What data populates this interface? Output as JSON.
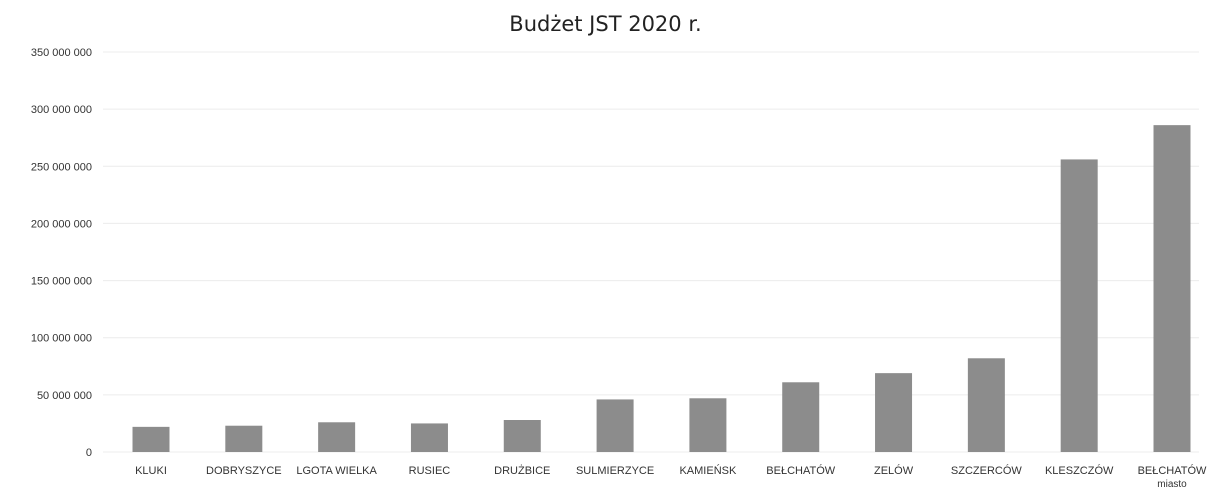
{
  "chart_data": {
    "type": "bar",
    "title": "Budżet JST 2020 r.",
    "xlabel": "",
    "ylabel": "",
    "ylim": [
      0,
      350000000
    ],
    "yticks": [
      0,
      50000000,
      100000000,
      150000000,
      200000000,
      250000000,
      300000000,
      350000000
    ],
    "ytick_labels": [
      "0",
      "50 000 000",
      "100 000 000",
      "150 000 000",
      "200 000 000",
      "250 000 000",
      "300 000 000",
      "350 000 000"
    ],
    "grid": true,
    "legend": false,
    "bar_color": "#8c8c8c",
    "categories": [
      {
        "label": "KLUKI",
        "sublabel": ""
      },
      {
        "label": "DOBRYSZYCE",
        "sublabel": ""
      },
      {
        "label": "LGOTA WIELKA",
        "sublabel": ""
      },
      {
        "label": "RUSIEC",
        "sublabel": ""
      },
      {
        "label": "DRUŻBICE",
        "sublabel": ""
      },
      {
        "label": "SULMIERZYCE",
        "sublabel": ""
      },
      {
        "label": "KAMIEŃSK",
        "sublabel": ""
      },
      {
        "label": "BEŁCHATÓW",
        "sublabel": ""
      },
      {
        "label": "ZELÓW",
        "sublabel": ""
      },
      {
        "label": "SZCZERCÓW",
        "sublabel": ""
      },
      {
        "label": "KLESZCZÓW",
        "sublabel": ""
      },
      {
        "label": "BEŁCHATÓW",
        "sublabel": "miasto"
      }
    ],
    "values": [
      22000000,
      23000000,
      26000000,
      25000000,
      28000000,
      46000000,
      47000000,
      61000000,
      69000000,
      82000000,
      256000000,
      286000000
    ]
  }
}
